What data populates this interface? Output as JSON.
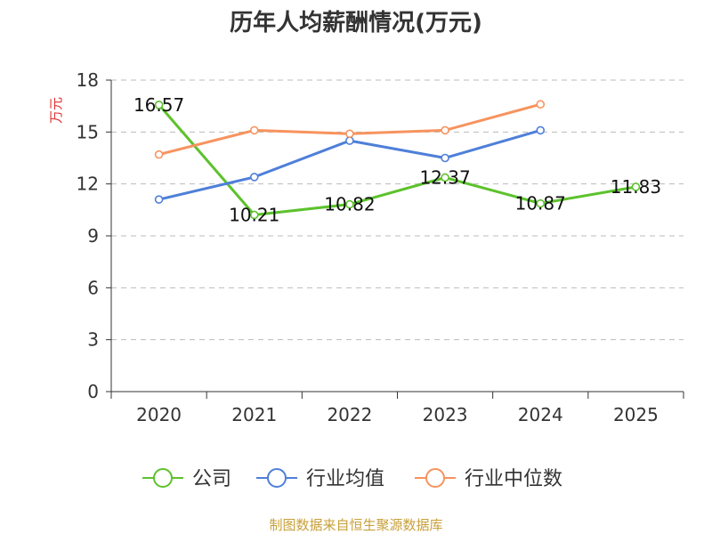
{
  "colors": {
    "company": "#5cc22c",
    "industry_avg": "#4e7fd9",
    "industry_median": "#f7935e",
    "grid": "#bbbbbb",
    "axis": "#333333",
    "unit": "#e03030",
    "source": "#c8a03a"
  },
  "chart_data": {
    "type": "line",
    "title": "历年人均薪酬情况(万元)",
    "ylabel": "万元",
    "xlabel": "",
    "categories": [
      "2020",
      "2021",
      "2022",
      "2023",
      "2024",
      "2025"
    ],
    "ylim": [
      0,
      18
    ],
    "yticks": [
      0,
      3,
      6,
      9,
      12,
      15,
      18
    ],
    "grid": true,
    "legend_position": "bottom",
    "series": [
      {
        "name": "公司",
        "color": "#5cc22c",
        "values": [
          16.57,
          10.21,
          10.82,
          12.37,
          10.87,
          11.83
        ],
        "labels": [
          "16.57",
          "10.21",
          "10.82",
          "12.37",
          "10.87",
          "11.83"
        ],
        "show_labels": true
      },
      {
        "name": "行业均值",
        "color": "#4e7fd9",
        "values": [
          11.1,
          12.4,
          14.5,
          13.5,
          15.1,
          null
        ],
        "show_labels": false
      },
      {
        "name": "行业中位数",
        "color": "#f7935e",
        "values": [
          13.7,
          15.1,
          14.9,
          15.1,
          16.6,
          null
        ],
        "show_labels": false
      }
    ],
    "source": "制图数据来自恒生聚源数据库"
  }
}
